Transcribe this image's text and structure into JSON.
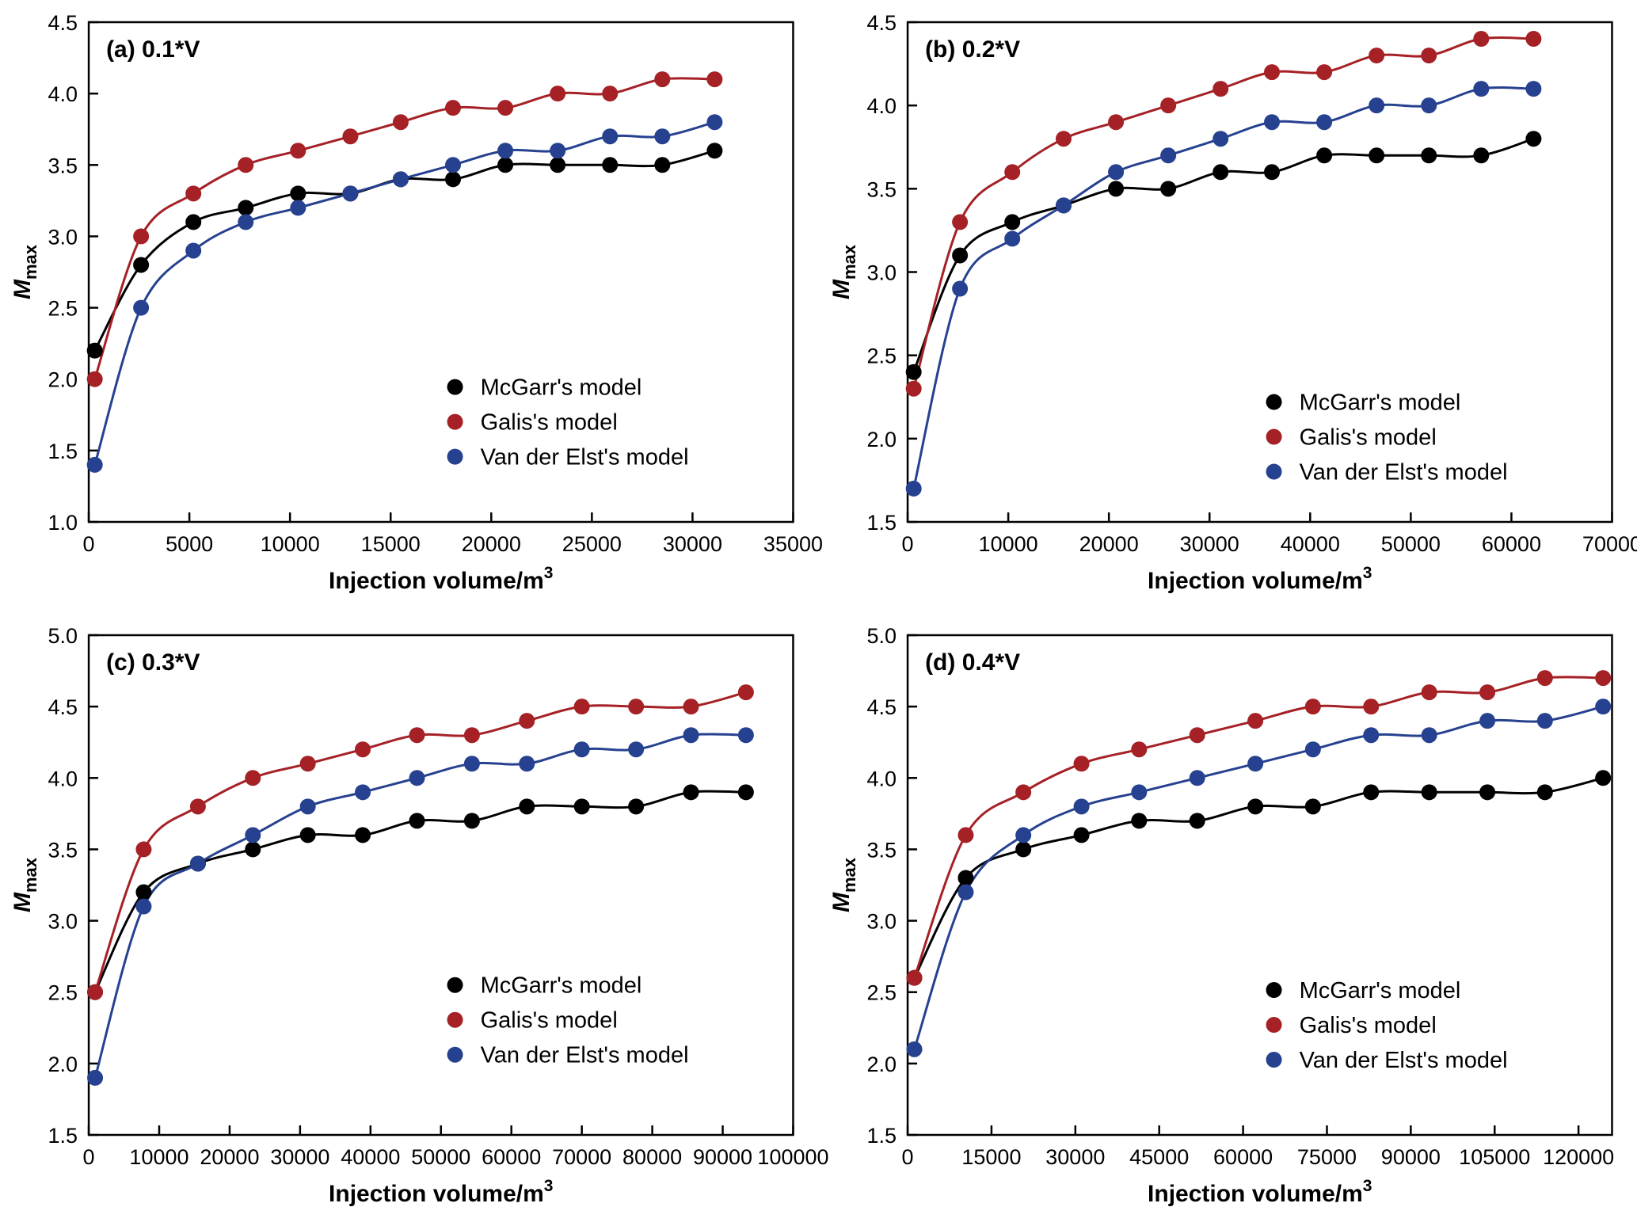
{
  "figure": {
    "background": "#ffffff",
    "legend_labels": [
      "McGarr's model",
      "Galis's model",
      "Van der Elst's model"
    ],
    "colors": {
      "mcgarr": "#000000",
      "galis": "#a52126",
      "van_der_elst": "#26418f"
    }
  },
  "axis_labels": {
    "xlabel_base": "Injection volume/m",
    "xlabel_exp": "3",
    "ylabel_base": "M",
    "ylabel_sub": "max"
  },
  "chart_data": [
    {
      "id": "a",
      "type": "scatter",
      "line_fit": true,
      "grid": false,
      "panel_label": "(a) 0.1*V",
      "xlabel": "Injection volume/m³",
      "ylabel": "Mmax",
      "xlim": [
        0,
        35000
      ],
      "ylim": [
        1.0,
        4.5
      ],
      "xticks": [
        0,
        5000,
        10000,
        15000,
        20000,
        25000,
        30000,
        35000
      ],
      "yticks": [
        1.0,
        1.5,
        2.0,
        2.5,
        3.0,
        3.5,
        4.0,
        4.5
      ],
      "legend": {
        "x": 0.52,
        "y": 0.73,
        "position": "inside lower right"
      },
      "series": [
        {
          "name": "McGarr's model",
          "color": "#000000",
          "x": [
            300,
            2600,
            5200,
            7800,
            10400,
            13000,
            15500,
            18100,
            20700,
            23300,
            25900,
            28500,
            31100
          ],
          "y": [
            2.2,
            2.8,
            3.1,
            3.2,
            3.3,
            3.3,
            3.4,
            3.4,
            3.5,
            3.5,
            3.5,
            3.5,
            3.6
          ]
        },
        {
          "name": "Galis's model",
          "color": "#a52126",
          "x": [
            300,
            2600,
            5200,
            7800,
            10400,
            13000,
            15500,
            18100,
            20700,
            23300,
            25900,
            28500,
            31100
          ],
          "y": [
            2.0,
            3.0,
            3.3,
            3.5,
            3.6,
            3.7,
            3.8,
            3.9,
            3.9,
            4.0,
            4.0,
            4.1,
            4.1
          ]
        },
        {
          "name": "Van der Elst's model",
          "color": "#26418f",
          "x": [
            300,
            2600,
            5200,
            7800,
            10400,
            13000,
            15500,
            18100,
            20700,
            23300,
            25900,
            28500,
            31100
          ],
          "y": [
            1.4,
            2.5,
            2.9,
            3.1,
            3.2,
            3.3,
            3.4,
            3.5,
            3.6,
            3.6,
            3.7,
            3.7,
            3.8
          ]
        }
      ]
    },
    {
      "id": "b",
      "type": "scatter",
      "line_fit": true,
      "grid": false,
      "panel_label": "(b) 0.2*V",
      "xlabel": "Injection volume/m³",
      "ylabel": "Mmax",
      "xlim": [
        0,
        70000
      ],
      "ylim": [
        1.5,
        4.5
      ],
      "xticks": [
        0,
        10000,
        20000,
        30000,
        40000,
        50000,
        60000,
        70000
      ],
      "yticks": [
        1.5,
        2.0,
        2.5,
        3.0,
        3.5,
        4.0,
        4.5
      ],
      "legend": {
        "x": 0.52,
        "y": 0.76,
        "position": "inside lower right"
      },
      "series": [
        {
          "name": "McGarr's model",
          "color": "#000000",
          "x": [
            600,
            5200,
            10400,
            15500,
            20700,
            25900,
            31100,
            36200,
            41400,
            46600,
            51800,
            57000,
            62200
          ],
          "y": [
            2.4,
            3.1,
            3.3,
            3.4,
            3.5,
            3.5,
            3.6,
            3.6,
            3.7,
            3.7,
            3.7,
            3.7,
            3.8
          ]
        },
        {
          "name": "Galis's model",
          "color": "#a52126",
          "x": [
            600,
            5200,
            10400,
            15500,
            20700,
            25900,
            31100,
            36200,
            41400,
            46600,
            51800,
            57000,
            62200
          ],
          "y": [
            2.3,
            3.3,
            3.6,
            3.8,
            3.9,
            4.0,
            4.1,
            4.2,
            4.2,
            4.3,
            4.3,
            4.4,
            4.4
          ]
        },
        {
          "name": "Van der Elst's model",
          "color": "#26418f",
          "x": [
            600,
            5200,
            10400,
            15500,
            20700,
            25900,
            31100,
            36200,
            41400,
            46600,
            51800,
            57000,
            62200
          ],
          "y": [
            1.7,
            2.9,
            3.2,
            3.4,
            3.6,
            3.7,
            3.8,
            3.9,
            3.9,
            4.0,
            4.0,
            4.1,
            4.1
          ]
        }
      ]
    },
    {
      "id": "c",
      "type": "scatter",
      "line_fit": true,
      "grid": false,
      "panel_label": "(c) 0.3*V",
      "xlabel": "Injection volume/m³",
      "ylabel": "Mmax",
      "xlim": [
        0,
        100000
      ],
      "ylim": [
        1.5,
        5.0
      ],
      "xticks": [
        0,
        10000,
        20000,
        30000,
        40000,
        50000,
        60000,
        70000,
        80000,
        90000,
        100000
      ],
      "yticks": [
        1.5,
        2.0,
        2.5,
        3.0,
        3.5,
        4.0,
        4.5,
        5.0
      ],
      "legend": {
        "x": 0.52,
        "y": 0.7,
        "position": "inside lower right"
      },
      "series": [
        {
          "name": "McGarr's model",
          "color": "#000000",
          "x": [
            900,
            7800,
            15500,
            23300,
            31100,
            38900,
            46600,
            54400,
            62200,
            70000,
            77700,
            85500,
            93300
          ],
          "y": [
            2.5,
            3.2,
            3.4,
            3.5,
            3.6,
            3.6,
            3.7,
            3.7,
            3.8,
            3.8,
            3.8,
            3.9,
            3.9
          ]
        },
        {
          "name": "Galis's model",
          "color": "#a52126",
          "x": [
            900,
            7800,
            15500,
            23300,
            31100,
            38900,
            46600,
            54400,
            62200,
            70000,
            77700,
            85500,
            93300
          ],
          "y": [
            2.5,
            3.5,
            3.8,
            4.0,
            4.1,
            4.2,
            4.3,
            4.3,
            4.4,
            4.5,
            4.5,
            4.5,
            4.6
          ]
        },
        {
          "name": "Van der Elst's model",
          "color": "#26418f",
          "x": [
            900,
            7800,
            15500,
            23300,
            31100,
            38900,
            46600,
            54400,
            62200,
            70000,
            77700,
            85500,
            93300
          ],
          "y": [
            1.9,
            3.1,
            3.4,
            3.6,
            3.8,
            3.9,
            4.0,
            4.1,
            4.1,
            4.2,
            4.2,
            4.3,
            4.3
          ]
        }
      ]
    },
    {
      "id": "d",
      "type": "scatter",
      "line_fit": true,
      "grid": false,
      "panel_label": "(d) 0.4*V",
      "xlabel": "Injection volume/m³",
      "ylabel": "Mmax",
      "xlim": [
        0,
        126000
      ],
      "ylim": [
        1.5,
        5.0
      ],
      "xticks": [
        0,
        15000,
        30000,
        45000,
        60000,
        75000,
        90000,
        105000,
        120000
      ],
      "yticks": [
        1.5,
        2.0,
        2.5,
        3.0,
        3.5,
        4.0,
        4.5,
        5.0
      ],
      "legend": {
        "x": 0.52,
        "y": 0.71,
        "position": "inside lower right"
      },
      "series": [
        {
          "name": "McGarr's model",
          "color": "#000000",
          "x": [
            1200,
            10400,
            20700,
            31100,
            41400,
            51800,
            62200,
            72500,
            82900,
            93300,
            103700,
            114000,
            124400
          ],
          "y": [
            2.6,
            3.3,
            3.5,
            3.6,
            3.7,
            3.7,
            3.8,
            3.8,
            3.9,
            3.9,
            3.9,
            3.9,
            4.0
          ]
        },
        {
          "name": "Galis's model",
          "color": "#a52126",
          "x": [
            1200,
            10400,
            20700,
            31100,
            41400,
            51800,
            62200,
            72500,
            82900,
            93300,
            103700,
            114000,
            124400
          ],
          "y": [
            2.6,
            3.6,
            3.9,
            4.1,
            4.2,
            4.3,
            4.4,
            4.5,
            4.5,
            4.6,
            4.6,
            4.7,
            4.7
          ]
        },
        {
          "name": "Van der Elst's model",
          "color": "#26418f",
          "x": [
            1200,
            10400,
            20700,
            31100,
            41400,
            51800,
            62200,
            72500,
            82900,
            93300,
            103700,
            114000,
            124400
          ],
          "y": [
            2.1,
            3.2,
            3.6,
            3.8,
            3.9,
            4.0,
            4.1,
            4.2,
            4.3,
            4.3,
            4.4,
            4.4,
            4.5
          ]
        }
      ]
    }
  ]
}
